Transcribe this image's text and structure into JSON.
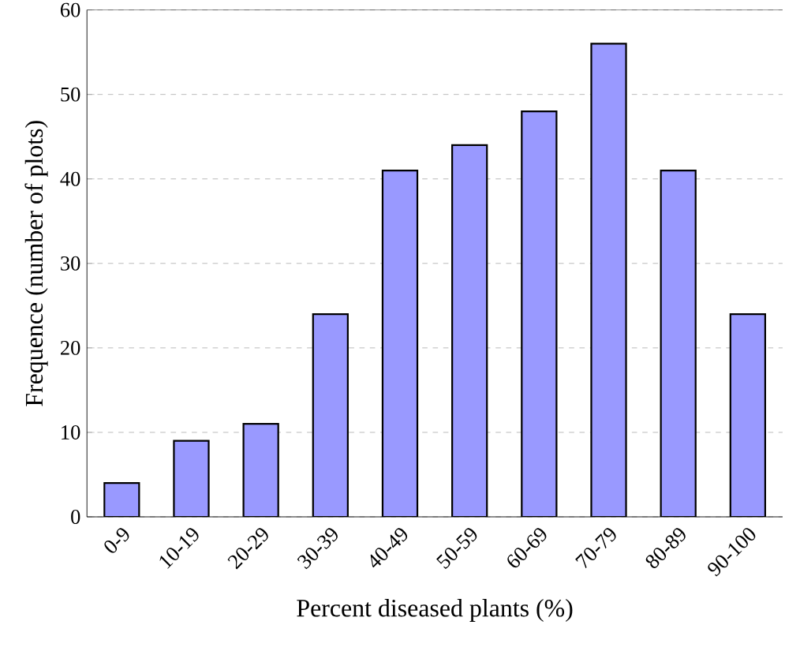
{
  "chart_data": {
    "type": "bar",
    "xlabel": "Percent diseased plants (%)",
    "ylabel": "Frequence (number of plots)",
    "categories": [
      "0-9",
      "10-19",
      "20-29",
      "30-39",
      "40-49",
      "50-59",
      "60-69",
      "70-79",
      "80-89",
      "90-100"
    ],
    "values": [
      4,
      9,
      11,
      24,
      41,
      44,
      48,
      56,
      41,
      24
    ],
    "color": "#9999ff",
    "ylim": [
      0,
      60
    ],
    "yticks": [
      0,
      10,
      20,
      30,
      40,
      50,
      60
    ],
    "grid": "y"
  }
}
